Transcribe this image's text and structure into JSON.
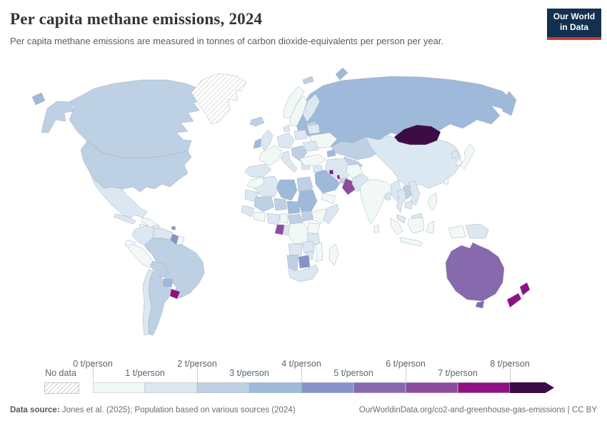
{
  "header": {
    "title": "Per capita methane emissions, 2024",
    "subtitle": "Per capita methane emissions are measured in tonnes of carbon dioxide-equivalents per person per year.",
    "logo": {
      "line1": "Our World",
      "line2": "in Data",
      "bg_color": "#12304f",
      "accent_color": "#d0382f"
    }
  },
  "legend": {
    "no_data_label": "No data",
    "tick_labels": [
      "0 t/person",
      "1 t/person",
      "2 t/person",
      "3 t/person",
      "4 t/person",
      "5 t/person",
      "6 t/person",
      "7 t/person",
      "8 t/person"
    ]
  },
  "footer": {
    "source_label": "Data source:",
    "source_text": " Jones et al. (2025); Population based on various sources (2024)",
    "link_text": "OurWorldinData.org/co2-and-greenhouse-gas-emissions | CC BY"
  },
  "chart_data": {
    "type": "choropleth_map",
    "title": "Per capita methane emissions, 2024",
    "unit": "t/person",
    "year": 2024,
    "legend_position": "bottom",
    "bins": [
      {
        "range": "0-1",
        "color": "#f1f8f6"
      },
      {
        "range": "1-2",
        "color": "#dbe7f1"
      },
      {
        "range": "2-3",
        "color": "#bdd0e4"
      },
      {
        "range": "3-4",
        "color": "#9fb9da"
      },
      {
        "range": "4-5",
        "color": "#8593c8"
      },
      {
        "range": "5-6",
        "color": "#8769ae"
      },
      {
        "range": "6-7",
        "color": "#8d4b9e"
      },
      {
        "range": "7-8",
        "color": "#8f1184"
      },
      {
        "range": "8+",
        "color": "#3d0c47"
      }
    ],
    "no_data_color": "hatch",
    "countries": [
      {
        "slug": "greenland",
        "name": "Greenland",
        "bin": "no-data"
      },
      {
        "slug": "canada",
        "name": "Canada",
        "bin": "2-3"
      },
      {
        "slug": "usa",
        "name": "United States",
        "bin": "2-3"
      },
      {
        "slug": "mexico",
        "name": "Mexico",
        "bin": "1-2"
      },
      {
        "slug": "central-america",
        "name": "Central America",
        "bin": "0-1"
      },
      {
        "slug": "nicaragua",
        "name": "Nicaragua",
        "bin": "1-2"
      },
      {
        "slug": "cuba",
        "name": "Cuba",
        "bin": "1-2"
      },
      {
        "slug": "hispaniola",
        "name": "Hispaniola",
        "bin": "0-1"
      },
      {
        "slug": "trinidad",
        "name": "Trinidad and Tobago",
        "bin": "4-5"
      },
      {
        "slug": "colombia",
        "name": "Colombia",
        "bin": "1-2"
      },
      {
        "slug": "venezuela",
        "name": "Venezuela",
        "bin": "1-2"
      },
      {
        "slug": "guyana",
        "name": "Guyana",
        "bin": "4-5"
      },
      {
        "slug": "suriname",
        "name": "Suriname",
        "bin": "0-1"
      },
      {
        "slug": "ecuador",
        "name": "Ecuador",
        "bin": "0-1"
      },
      {
        "slug": "peru",
        "name": "Peru",
        "bin": "0-1"
      },
      {
        "slug": "brazil",
        "name": "Brazil",
        "bin": "2-3"
      },
      {
        "slug": "bolivia",
        "name": "Bolivia",
        "bin": "2-3"
      },
      {
        "slug": "paraguay",
        "name": "Paraguay",
        "bin": "3-4"
      },
      {
        "slug": "chile",
        "name": "Chile",
        "bin": "1-2"
      },
      {
        "slug": "argentina",
        "name": "Argentina",
        "bin": "2-3"
      },
      {
        "slug": "uruguay",
        "name": "Uruguay",
        "bin": "7-8"
      },
      {
        "slug": "iceland",
        "name": "Iceland",
        "bin": "2-3"
      },
      {
        "slug": "ireland",
        "name": "Ireland",
        "bin": "3-4"
      },
      {
        "slug": "uk",
        "name": "United Kingdom",
        "bin": "1-2"
      },
      {
        "slug": "norway",
        "name": "Norway",
        "bin": "0-1"
      },
      {
        "slug": "sweden",
        "name": "Sweden",
        "bin": "0-1"
      },
      {
        "slug": "finland",
        "name": "Finland",
        "bin": "1-2"
      },
      {
        "slug": "baltics",
        "name": "Baltic states",
        "bin": "2-3"
      },
      {
        "slug": "denmark",
        "name": "Denmark",
        "bin": "1-2"
      },
      {
        "slug": "germany",
        "name": "Central Europe",
        "bin": "1-2"
      },
      {
        "slug": "poland",
        "name": "Poland",
        "bin": "1-2"
      },
      {
        "slug": "belarus",
        "name": "Belarus",
        "bin": "1-2"
      },
      {
        "slug": "ukraine",
        "name": "Ukraine",
        "bin": "0-1"
      },
      {
        "slug": "france",
        "name": "France",
        "bin": "0-1"
      },
      {
        "slug": "spain",
        "name": "Spain",
        "bin": "1-2"
      },
      {
        "slug": "italy",
        "name": "Italy",
        "bin": "1-2"
      },
      {
        "slug": "balkans",
        "name": "Balkans",
        "bin": "2-3"
      },
      {
        "slug": "greece",
        "name": "Greece",
        "bin": "1-2"
      },
      {
        "slug": "romania",
        "name": "Romania",
        "bin": "1-2"
      },
      {
        "slug": "svalbard",
        "name": "Svalbard",
        "bin": "2-3"
      },
      {
        "slug": "russia",
        "name": "Russia",
        "bin": "3-4"
      },
      {
        "slug": "kazakhstan",
        "name": "Kazakhstan",
        "bin": "2-3"
      },
      {
        "slug": "uzbekistan",
        "name": "Uzbekistan",
        "bin": "2-3"
      },
      {
        "slug": "turkmenistan",
        "name": "Turkmenistan",
        "bin": "3-4"
      },
      {
        "slug": "azerbaijan",
        "name": "Azerbaijan",
        "bin": "3-4"
      },
      {
        "slug": "turkey",
        "name": "Turkey",
        "bin": "0-1"
      },
      {
        "slug": "syria",
        "name": "Syria",
        "bin": "1-2"
      },
      {
        "slug": "iraq",
        "name": "Iraq",
        "bin": "3-4"
      },
      {
        "slug": "iran",
        "name": "Iran",
        "bin": "1-2"
      },
      {
        "slug": "saudi-arabia",
        "name": "Saudi Arabia",
        "bin": "3-4"
      },
      {
        "slug": "kuwait",
        "name": "Kuwait",
        "bin": "7-8"
      },
      {
        "slug": "qatar",
        "name": "Qatar",
        "bin": "7-8"
      },
      {
        "slug": "uae",
        "name": "United Arab Emirates",
        "bin": "2-3"
      },
      {
        "slug": "oman",
        "name": "Oman",
        "bin": "6-7"
      },
      {
        "slug": "yemen",
        "name": "Yemen",
        "bin": "0-1"
      },
      {
        "slug": "afghanistan",
        "name": "Afghanistan",
        "bin": "0-1"
      },
      {
        "slug": "pakistan",
        "name": "Pakistan",
        "bin": "1-2"
      },
      {
        "slug": "india",
        "name": "India",
        "bin": "0-1"
      },
      {
        "slug": "bangladesh",
        "name": "Bangladesh",
        "bin": "1-2"
      },
      {
        "slug": "sri-lanka",
        "name": "Sri Lanka",
        "bin": "0-1"
      },
      {
        "slug": "china",
        "name": "China",
        "bin": "1-2"
      },
      {
        "slug": "mongolia",
        "name": "Mongolia",
        "bin": "8+"
      },
      {
        "slug": "japan",
        "name": "Japan",
        "bin": "0-1"
      },
      {
        "slug": "north-korea",
        "name": "North Korea",
        "bin": "1-2"
      },
      {
        "slug": "south-korea",
        "name": "South Korea",
        "bin": "0-1"
      },
      {
        "slug": "taiwan",
        "name": "Taiwan",
        "bin": "0-1"
      },
      {
        "slug": "myanmar",
        "name": "Myanmar",
        "bin": "1-2"
      },
      {
        "slug": "laos",
        "name": "Laos",
        "bin": "2-3"
      },
      {
        "slug": "vietnam",
        "name": "Vietnam",
        "bin": "1-2"
      },
      {
        "slug": "thailand",
        "name": "Thailand",
        "bin": "1-2"
      },
      {
        "slug": "cambodia",
        "name": "Cambodia",
        "bin": "1-2"
      },
      {
        "slug": "malaysia",
        "name": "Malaysia",
        "bin": "1-2"
      },
      {
        "slug": "indonesia",
        "name": "Indonesia",
        "bin": "0-1"
      },
      {
        "slug": "philippines",
        "name": "Philippines",
        "bin": "0-1"
      },
      {
        "slug": "png",
        "name": "Papua New Guinea",
        "bin": "1-2"
      },
      {
        "slug": "australia",
        "name": "Australia",
        "bin": "5-6"
      },
      {
        "slug": "new-zealand",
        "name": "New Zealand",
        "bin": "7-8"
      },
      {
        "slug": "morocco",
        "name": "Morocco",
        "bin": "0-1"
      },
      {
        "slug": "algeria",
        "name": "Algeria",
        "bin": "1-2"
      },
      {
        "slug": "libya",
        "name": "Libya",
        "bin": "3-4"
      },
      {
        "slug": "egypt",
        "name": "Egypt",
        "bin": "2-3"
      },
      {
        "slug": "mauritania",
        "name": "Mauritania",
        "bin": "1-2"
      },
      {
        "slug": "mali",
        "name": "Mali",
        "bin": "2-3"
      },
      {
        "slug": "niger",
        "name": "Niger",
        "bin": "2-3"
      },
      {
        "slug": "chad",
        "name": "Chad",
        "bin": "3-4"
      },
      {
        "slug": "sudan",
        "name": "Sudan",
        "bin": "3-4"
      },
      {
        "slug": "south-sudan",
        "name": "South Sudan",
        "bin": "2-3"
      },
      {
        "slug": "ethiopia",
        "name": "Ethiopia",
        "bin": "0-1"
      },
      {
        "slug": "somalia",
        "name": "Somalia",
        "bin": "1-2"
      },
      {
        "slug": "senegal-guinea",
        "name": "Senegal/Guinea",
        "bin": "1-2"
      },
      {
        "slug": "ghana-coast",
        "name": "Côte d'Ivoire/Ghana",
        "bin": "0-1"
      },
      {
        "slug": "nigeria",
        "name": "Nigeria",
        "bin": "1-2"
      },
      {
        "slug": "cameroon",
        "name": "Cameroon",
        "bin": "0-1"
      },
      {
        "slug": "car",
        "name": "Central African Republic",
        "bin": "2-3"
      },
      {
        "slug": "gabon",
        "name": "Gabon",
        "bin": "6-7"
      },
      {
        "slug": "congo",
        "name": "Congo",
        "bin": "1-2"
      },
      {
        "slug": "drc",
        "name": "Democratic Republic of Congo",
        "bin": "0-1"
      },
      {
        "slug": "kenya",
        "name": "Kenya/Uganda",
        "bin": "0-1"
      },
      {
        "slug": "tanzania",
        "name": "Tanzania",
        "bin": "1-2"
      },
      {
        "slug": "angola",
        "name": "Angola",
        "bin": "1-2"
      },
      {
        "slug": "zambia",
        "name": "Zambia",
        "bin": "1-2"
      },
      {
        "slug": "zimbabwe",
        "name": "Zimbabwe",
        "bin": "1-2"
      },
      {
        "slug": "mozambique",
        "name": "Mozambique",
        "bin": "0-1"
      },
      {
        "slug": "namibia",
        "name": "Namibia",
        "bin": "2-3"
      },
      {
        "slug": "botswana",
        "name": "Botswana",
        "bin": "4-5"
      },
      {
        "slug": "south-africa",
        "name": "South Africa",
        "bin": "1-2"
      },
      {
        "slug": "madagascar",
        "name": "Madagascar",
        "bin": "0-1"
      }
    ]
  }
}
